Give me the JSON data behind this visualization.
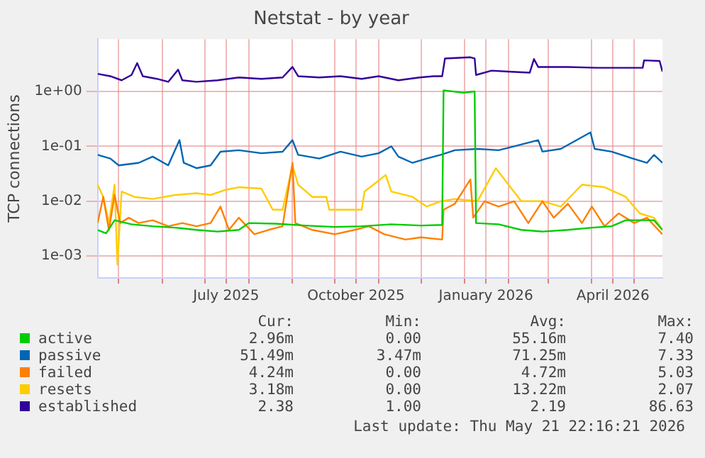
{
  "chart_data": {
    "type": "line",
    "title": "Netstat - by year",
    "ylabel": "TCP connections",
    "log": "y",
    "grid": true,
    "legend": "bottom left",
    "marker": "none",
    "line_style": "solid",
    "xlim": [
      "2025-04-16",
      "2026-05-21"
    ],
    "xticks": [
      {
        "value": "2025-05-01",
        "label": null
      },
      {
        "value": "2025-06-01",
        "label": null
      },
      {
        "value": "2025-07-01",
        "label": null
      },
      {
        "value": "2025-07-16",
        "label": "July 2025"
      },
      {
        "value": "2025-08-01",
        "label": null
      },
      {
        "value": "2025-09-01",
        "label": null
      },
      {
        "value": "2025-10-01",
        "label": null
      },
      {
        "value": "2025-10-16",
        "label": "October 2025"
      },
      {
        "value": "2025-11-01",
        "label": null
      },
      {
        "value": "2025-12-01",
        "label": null
      },
      {
        "value": "2026-01-01",
        "label": null
      },
      {
        "value": "2026-01-16",
        "label": "January 2026"
      },
      {
        "value": "2026-02-01",
        "label": null
      },
      {
        "value": "2026-03-01",
        "label": null
      },
      {
        "value": "2026-04-01",
        "label": null
      },
      {
        "value": "2026-04-16",
        "label": "April 2026"
      },
      {
        "value": "2026-05-01",
        "label": null
      }
    ],
    "ylim": [
      0.0004,
      9
    ],
    "yticks": [
      {
        "value": 0.001,
        "label": "1e-03"
      },
      {
        "value": 0.01,
        "label": "1e-02"
      },
      {
        "value": 0.1,
        "label": "1e-01"
      },
      {
        "value": 1,
        "label": "1e+00"
      }
    ],
    "series": [
      {
        "name": "active",
        "color": "#00cc00",
        "x": [
          "2025-04-16",
          "2025-04-22",
          "2025-04-28",
          "2025-05-10",
          "2025-05-25",
          "2025-06-10",
          "2025-06-25",
          "2025-07-10",
          "2025-07-25",
          "2025-08-01",
          "2025-08-20",
          "2025-09-10",
          "2025-10-01",
          "2025-10-20",
          "2025-11-10",
          "2025-12-01",
          "2025-12-16",
          "2025-12-17",
          "2025-12-31",
          "2026-01-08",
          "2026-01-09",
          "2026-01-25",
          "2026-02-10",
          "2026-02-25",
          "2026-03-15",
          "2026-04-01",
          "2026-04-15",
          "2026-04-25",
          "2026-05-15",
          "2026-05-21"
        ],
        "values": [
          0.003,
          0.0026,
          0.0045,
          0.0038,
          0.0035,
          0.0033,
          0.003,
          0.0028,
          0.003,
          0.004,
          0.0039,
          0.0036,
          0.0034,
          0.0035,
          0.0038,
          0.0036,
          0.0037,
          1.05,
          0.95,
          1.0,
          0.004,
          0.0038,
          0.003,
          0.0028,
          0.003,
          0.0033,
          0.0035,
          0.0045,
          0.0045,
          0.003
        ]
      },
      {
        "name": "passive",
        "color": "#0066b3",
        "x": [
          "2025-04-16",
          "2025-04-25",
          "2025-05-01",
          "2025-05-15",
          "2025-05-25",
          "2025-06-05",
          "2025-06-13",
          "2025-06-16",
          "2025-06-25",
          "2025-07-05",
          "2025-07-12",
          "2025-07-25",
          "2025-08-10",
          "2025-08-25",
          "2025-09-01",
          "2025-09-05",
          "2025-09-20",
          "2025-10-05",
          "2025-10-20",
          "2025-11-01",
          "2025-11-10",
          "2025-11-15",
          "2025-11-25",
          "2025-12-05",
          "2025-12-15",
          "2025-12-25",
          "2026-01-10",
          "2026-01-25",
          "2026-02-05",
          "2026-02-22",
          "2026-02-25",
          "2026-03-10",
          "2026-03-31",
          "2026-04-03",
          "2026-04-15",
          "2026-04-30",
          "2026-05-10",
          "2026-05-15",
          "2026-05-21"
        ],
        "values": [
          0.07,
          0.06,
          0.045,
          0.05,
          0.065,
          0.045,
          0.13,
          0.05,
          0.04,
          0.045,
          0.08,
          0.085,
          0.075,
          0.08,
          0.13,
          0.07,
          0.06,
          0.08,
          0.065,
          0.075,
          0.1,
          0.065,
          0.05,
          0.06,
          0.07,
          0.085,
          0.09,
          0.085,
          0.1,
          0.13,
          0.08,
          0.09,
          0.18,
          0.09,
          0.08,
          0.06,
          0.05,
          0.07,
          0.05
        ]
      },
      {
        "name": "failed",
        "color": "#ff8000",
        "x": [
          "2025-04-16",
          "2025-04-20",
          "2025-04-24",
          "2025-04-28",
          "2025-05-02",
          "2025-05-08",
          "2025-05-15",
          "2025-05-25",
          "2025-06-05",
          "2025-06-15",
          "2025-06-25",
          "2025-07-05",
          "2025-07-12",
          "2025-07-18",
          "2025-07-25",
          "2025-08-05",
          "2025-08-15",
          "2025-08-25",
          "2025-09-01",
          "2025-09-03",
          "2025-09-15",
          "2025-10-01",
          "2025-10-15",
          "2025-10-25",
          "2025-11-05",
          "2025-11-20",
          "2025-12-01",
          "2025-12-16",
          "2025-12-17",
          "2025-12-25",
          "2026-01-05",
          "2026-01-07",
          "2026-01-15",
          "2026-01-25",
          "2026-02-05",
          "2026-02-15",
          "2026-02-25",
          "2026-03-05",
          "2026-03-15",
          "2026-03-25",
          "2026-04-01",
          "2026-04-10",
          "2026-04-20",
          "2026-05-01",
          "2026-05-10",
          "2026-05-21"
        ],
        "values": [
          0.004,
          0.012,
          0.003,
          0.013,
          0.004,
          0.005,
          0.004,
          0.0045,
          0.0035,
          0.004,
          0.0035,
          0.004,
          0.008,
          0.003,
          0.005,
          0.0025,
          0.003,
          0.0035,
          0.05,
          0.004,
          0.003,
          0.0025,
          0.003,
          0.0035,
          0.0025,
          0.002,
          0.0022,
          0.002,
          0.007,
          0.009,
          0.025,
          0.005,
          0.01,
          0.008,
          0.01,
          0.004,
          0.01,
          0.005,
          0.009,
          0.004,
          0.008,
          0.0035,
          0.006,
          0.004,
          0.005,
          0.0025
        ]
      },
      {
        "name": "resets",
        "color": "#ffcc00",
        "x": [
          "2025-04-16",
          "2025-04-20",
          "2025-04-24",
          "2025-04-28",
          "2025-04-30",
          "2025-05-03",
          "2025-05-12",
          "2025-05-25",
          "2025-06-10",
          "2025-06-25",
          "2025-07-05",
          "2025-07-15",
          "2025-07-25",
          "2025-08-10",
          "2025-08-18",
          "2025-08-25",
          "2025-09-01",
          "2025-09-05",
          "2025-09-15",
          "2025-09-25",
          "2025-09-27",
          "2025-10-10",
          "2025-10-20",
          "2025-10-22",
          "2025-11-06",
          "2025-11-10",
          "2025-11-25",
          "2025-12-05",
          "2025-12-15",
          "2025-12-25",
          "2026-01-10",
          "2026-01-23",
          "2026-02-01",
          "2026-02-10",
          "2026-02-25",
          "2026-03-10",
          "2026-03-25",
          "2026-04-10",
          "2026-04-25",
          "2026-05-05",
          "2026-05-15",
          "2026-05-21"
        ],
        "values": [
          0.02,
          0.012,
          0.004,
          0.02,
          0.0007,
          0.015,
          0.012,
          0.011,
          0.013,
          0.014,
          0.013,
          0.016,
          0.018,
          0.017,
          0.007,
          0.007,
          0.045,
          0.02,
          0.012,
          0.012,
          0.007,
          0.007,
          0.007,
          0.015,
          0.03,
          0.015,
          0.012,
          0.008,
          0.01,
          0.011,
          0.01,
          0.04,
          0.02,
          0.01,
          0.01,
          0.008,
          0.02,
          0.018,
          0.012,
          0.006,
          0.005,
          0.003
        ]
      },
      {
        "name": "established",
        "color": "#330099",
        "x": [
          "2025-04-16",
          "2025-04-25",
          "2025-05-03",
          "2025-05-10",
          "2025-05-14",
          "2025-05-18",
          "2025-05-28",
          "2025-06-05",
          "2025-06-12",
          "2025-06-15",
          "2025-06-25",
          "2025-07-10",
          "2025-07-25",
          "2025-08-10",
          "2025-08-25",
          "2025-09-01",
          "2025-09-05",
          "2025-09-20",
          "2025-10-05",
          "2025-10-20",
          "2025-11-01",
          "2025-11-15",
          "2025-11-30",
          "2025-12-10",
          "2025-12-16",
          "2025-12-18",
          "2026-01-05",
          "2026-01-08",
          "2026-01-09",
          "2026-01-20",
          "2026-02-01",
          "2026-02-16",
          "2026-02-19",
          "2026-02-22",
          "2026-03-15",
          "2026-04-05",
          "2026-05-07",
          "2026-05-08",
          "2026-05-19",
          "2026-05-21"
        ],
        "values": [
          2.1,
          1.9,
          1.6,
          2.0,
          3.3,
          1.9,
          1.7,
          1.5,
          2.5,
          1.6,
          1.5,
          1.6,
          1.8,
          1.7,
          1.8,
          2.8,
          1.9,
          1.8,
          1.9,
          1.7,
          1.9,
          1.6,
          1.8,
          1.9,
          1.9,
          4.0,
          4.2,
          4.0,
          2.0,
          2.4,
          2.3,
          2.2,
          3.9,
          2.8,
          2.8,
          2.7,
          2.7,
          3.7,
          3.6,
          2.3
        ]
      }
    ],
    "annotations": [
      "Cur:",
      "Min:",
      "Avg:",
      "Max:",
      "2.96m",
      "0.00",
      "55.16m",
      "7.40",
      "51.49m",
      "3.47m",
      "71.25m",
      "7.33",
      "4.24m",
      "0.00",
      "4.72m",
      "5.03",
      "3.18m",
      "0.00",
      "13.22m",
      "2.07",
      "2.38",
      "1.00",
      "2.19",
      "86.63",
      "Last update: Thu May 21 22:16:21 2026"
    ]
  }
}
